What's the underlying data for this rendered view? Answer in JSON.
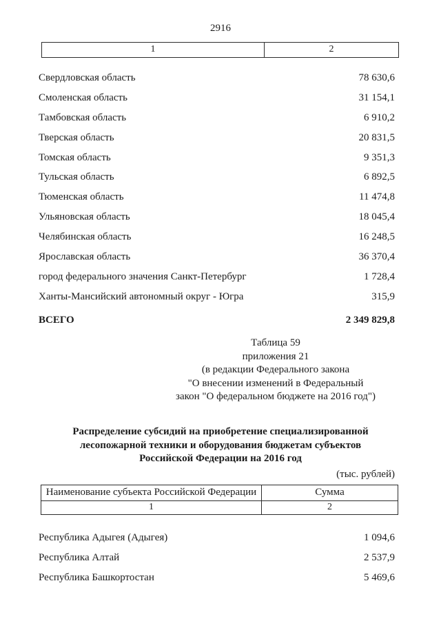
{
  "page": {
    "number": "2916"
  },
  "continuation_table": {
    "col1": "1",
    "col2": "2",
    "rows": [
      {
        "name": "Свердловская область",
        "value": "78 630,6"
      },
      {
        "name": "Смоленская область",
        "value": "31 154,1"
      },
      {
        "name": "Тамбовская область",
        "value": "6 910,2"
      },
      {
        "name": "Тверская область",
        "value": "20 831,5"
      },
      {
        "name": "Томская область",
        "value": "9 351,3"
      },
      {
        "name": "Тульская область",
        "value": "6 892,5"
      },
      {
        "name": "Тюменская область",
        "value": "11 474,8"
      },
      {
        "name": "Ульяновская область",
        "value": "18 045,4"
      },
      {
        "name": "Челябинская область",
        "value": "16 248,5"
      },
      {
        "name": "Ярославская область",
        "value": "36 370,4"
      },
      {
        "name": "город федерального значения Санкт-Петербург",
        "value": "1 728,4"
      },
      {
        "name": "Ханты-Мансийский автономный округ - Югра",
        "value": "315,9"
      }
    ],
    "total_label": "ВСЕГО",
    "total_value": "2 349 829,8"
  },
  "annotation": {
    "lines": [
      "Таблица 59",
      "приложения 21",
      "(в редакции Федерального закона",
      "\"О внесении изменений в Федеральный",
      "закон \"О федеральном бюджете на 2016 год\")"
    ]
  },
  "title": {
    "lines": [
      "Распределение субсидий на приобретение специализированной",
      "лесопожарной техники и оборудования бюджетам субъектов",
      "Российской Федерации на 2016 год"
    ]
  },
  "units_note": "(тыс. рублей)",
  "subsidy_table": {
    "header": {
      "name": "Наименование субъекта Российской Федерации",
      "sum": "Сумма"
    },
    "subheader": {
      "col1": "1",
      "col2": "2"
    },
    "rows": [
      {
        "name": "Республика Адыгея (Адыгея)",
        "value": "1 094,6"
      },
      {
        "name": "Республика Алтай",
        "value": "2 537,9"
      },
      {
        "name": "Республика Башкортостан",
        "value": "5 469,6"
      }
    ]
  },
  "colors": {
    "background": "#ffffff",
    "text": "#1c1c1c",
    "border": "#2b2b2b"
  }
}
